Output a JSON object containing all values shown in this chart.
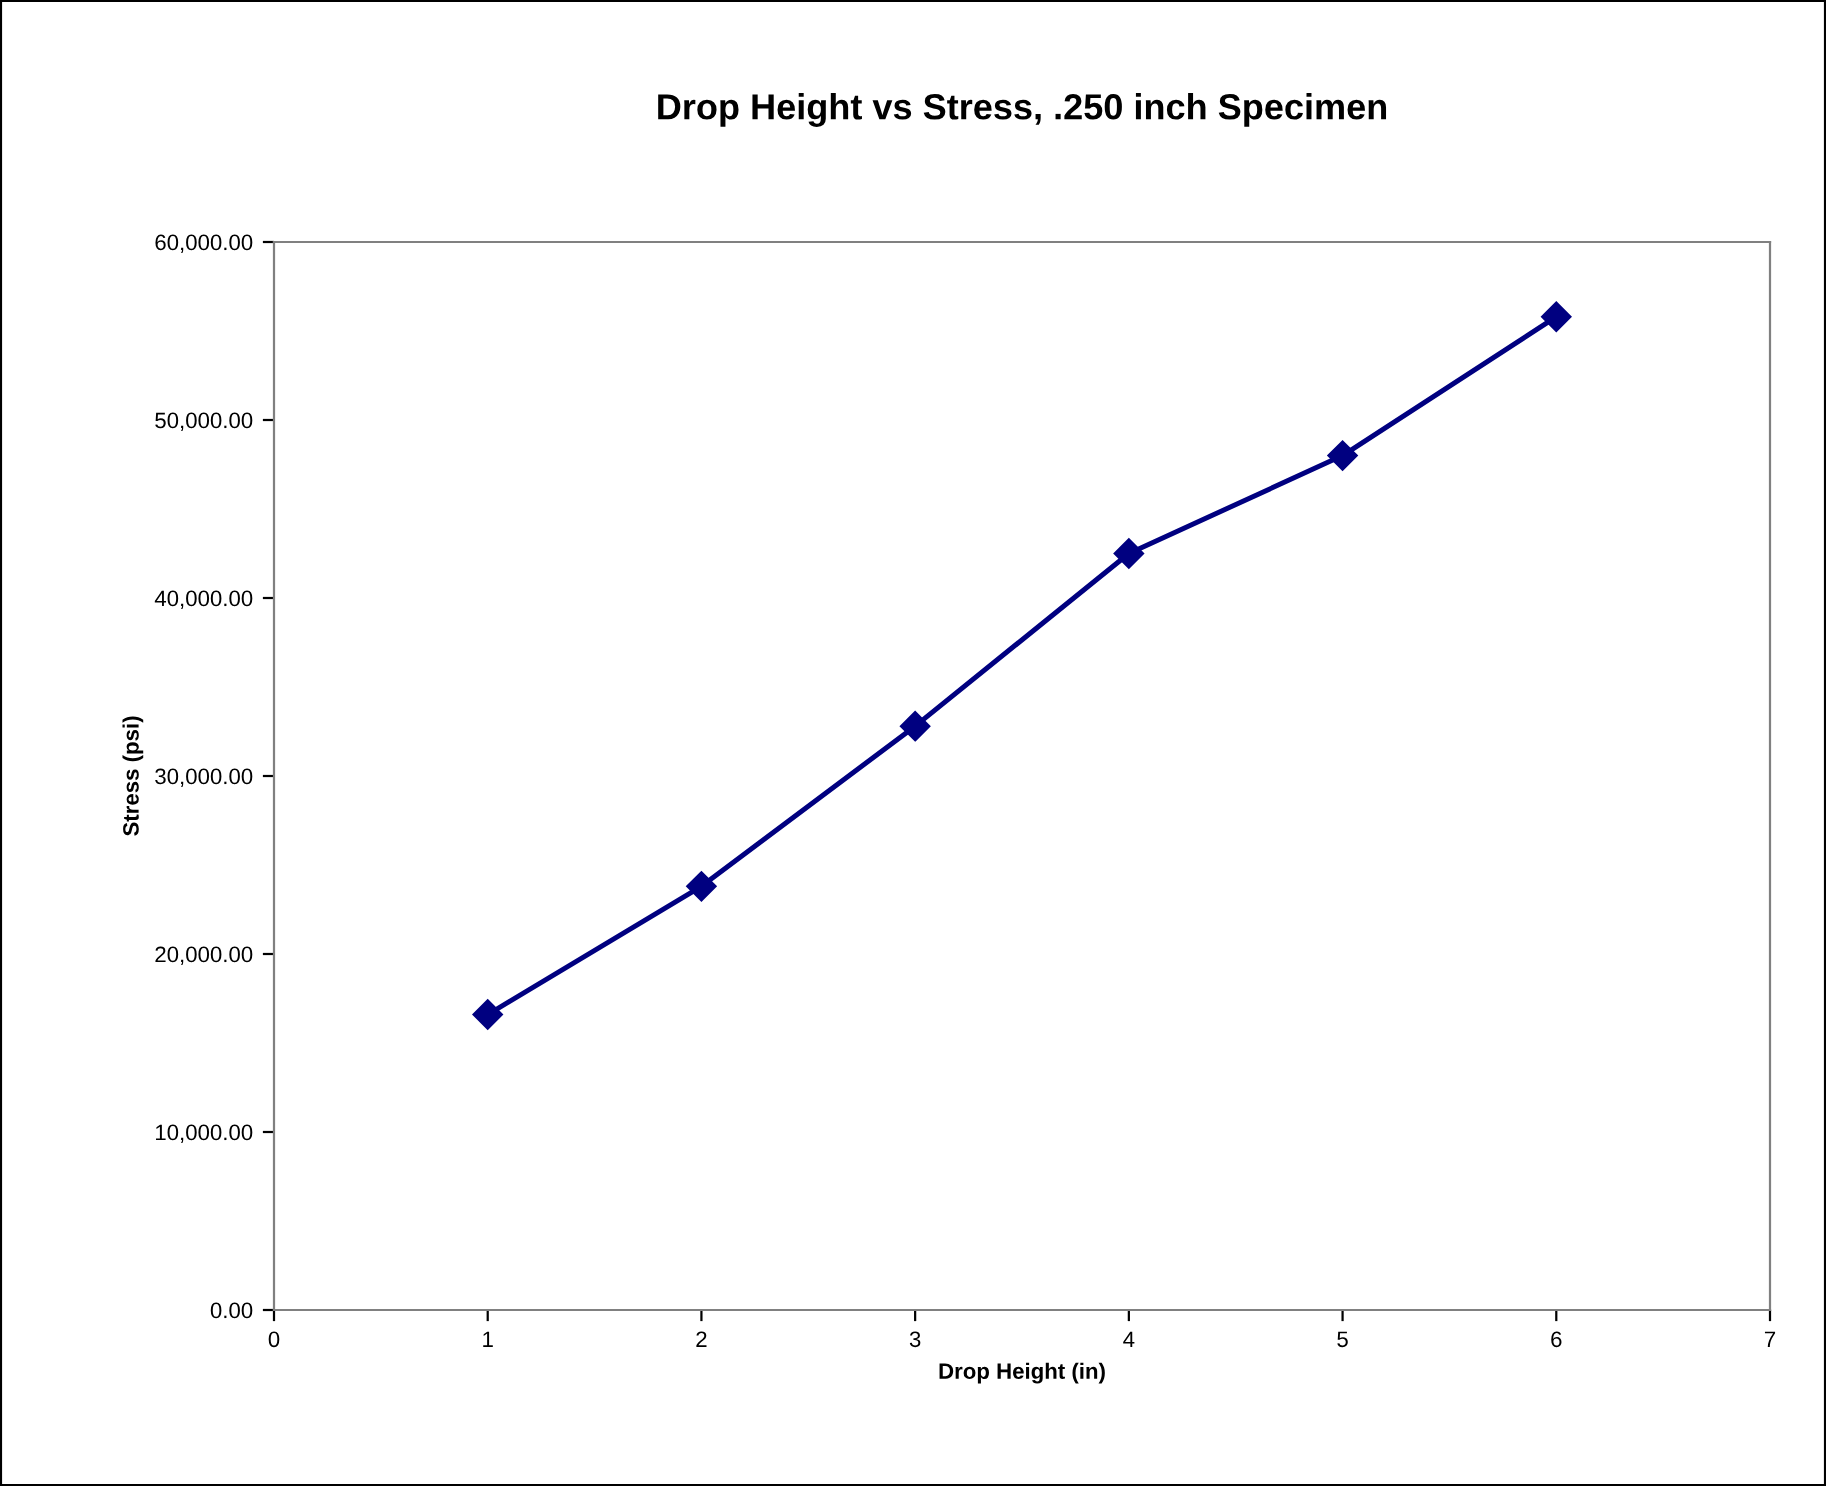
{
  "chart_data": {
    "type": "line",
    "title": "Drop Height vs Stress, .250 inch Specimen",
    "xlabel": "Drop Height (in)",
    "ylabel": "Stress (psi)",
    "x": [
      1,
      2,
      3,
      4,
      5,
      6
    ],
    "series": [
      {
        "color": "#000080",
        "values": [
          16600,
          23800,
          32800,
          42500,
          48000,
          55800
        ]
      }
    ],
    "xlim": [
      0,
      7
    ],
    "xticks": [
      0,
      1,
      2,
      3,
      4,
      5,
      6,
      7
    ],
    "ylim": [
      0,
      60000
    ],
    "yticks": [
      {
        "value": 0,
        "label": "0.00"
      },
      {
        "value": 10000,
        "label": "10,000.00"
      },
      {
        "value": 20000,
        "label": "20,000.00"
      },
      {
        "value": 30000,
        "label": "30,000.00"
      },
      {
        "value": 40000,
        "label": "40,000.00"
      },
      {
        "value": 50000,
        "label": "50,000.00"
      },
      {
        "value": 60000,
        "label": "60,000.00"
      }
    ],
    "grid": false,
    "legend": false,
    "marker": "diamond",
    "line_style": "solid"
  }
}
